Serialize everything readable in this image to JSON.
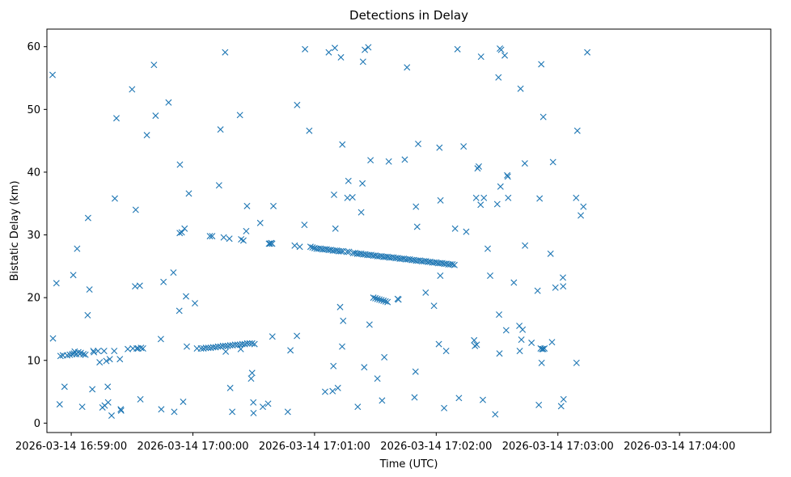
{
  "chart_data": {
    "type": "scatter",
    "title": "Detections in Delay",
    "xlabel": "Time (UTC)",
    "ylabel": "Bistatic Delay (km)",
    "marker": "x",
    "color": "#1f77b4",
    "xlim_seconds": [
      -12,
      345
    ],
    "ylim": [
      -1.5,
      62.8
    ],
    "x_ticks": [
      {
        "seconds": 0,
        "label": "2026-03-14 16:59:00"
      },
      {
        "seconds": 60,
        "label": "2026-03-14 17:00:00"
      },
      {
        "seconds": 120,
        "label": "2026-03-14 17:01:00"
      },
      {
        "seconds": 180,
        "label": "2026-03-14 17:02:00"
      },
      {
        "seconds": 240,
        "label": "2026-03-14 17:03:00"
      },
      {
        "seconds": 300,
        "label": "2026-03-14 17:04:00"
      }
    ],
    "y_ticks": [
      0,
      10,
      20,
      30,
      40,
      50,
      60
    ],
    "x_unit_note": "x values are seconds after 2026-03-14 16:59:00 UTC",
    "points": [
      [
        -9.0,
        13.5
      ],
      [
        -9.2,
        55.5
      ],
      [
        -7.3,
        22.3
      ],
      [
        -5.7,
        3.0
      ],
      [
        -5.3,
        10.7
      ],
      [
        -4.1,
        10.8
      ],
      [
        -3.3,
        5.8
      ],
      [
        -2.0,
        10.8
      ],
      [
        -0.7,
        10.9
      ],
      [
        0.5,
        11.0
      ],
      [
        1.0,
        23.6
      ],
      [
        1.3,
        11.1
      ],
      [
        1.7,
        11.4
      ],
      [
        2.5,
        11.0
      ],
      [
        2.9,
        27.8
      ],
      [
        3.5,
        11.3
      ],
      [
        4.2,
        11.0
      ],
      [
        4.7,
        11.2
      ],
      [
        5.4,
        2.6
      ],
      [
        6.0,
        11.0
      ],
      [
        7.0,
        10.9
      ],
      [
        8.1,
        17.2
      ],
      [
        8.3,
        32.7
      ],
      [
        9.0,
        21.3
      ],
      [
        10.4,
        5.4
      ],
      [
        10.9,
        11.5
      ],
      [
        13.2,
        11.5
      ],
      [
        14.0,
        9.7
      ],
      [
        15.4,
        2.5
      ],
      [
        16.2,
        11.5
      ],
      [
        16.5,
        2.8
      ],
      [
        17.3,
        9.9
      ],
      [
        18.0,
        5.8
      ],
      [
        18.2,
        3.3
      ],
      [
        19.0,
        10.2
      ],
      [
        19.9,
        1.2
      ],
      [
        21.2,
        11.5
      ],
      [
        21.5,
        35.8
      ],
      [
        22.3,
        48.6
      ],
      [
        24.0,
        10.2
      ],
      [
        24.4,
        2.2
      ],
      [
        24.6,
        2.0
      ],
      [
        27.9,
        11.8
      ],
      [
        30.0,
        53.2
      ],
      [
        30.4,
        11.9
      ],
      [
        31.5,
        21.8
      ],
      [
        31.8,
        34.0
      ],
      [
        32.3,
        11.9
      ],
      [
        33.0,
        11.9
      ],
      [
        33.8,
        21.9
      ],
      [
        34.1,
        3.8
      ],
      [
        34.4,
        12.0
      ],
      [
        35.4,
        11.9
      ],
      [
        37.3,
        45.9
      ],
      [
        40.8,
        57.1
      ],
      [
        41.6,
        49.0
      ],
      [
        44.4,
        2.2
      ],
      [
        44.2,
        13.4
      ],
      [
        45.5,
        22.5
      ],
      [
        48.0,
        51.1
      ],
      [
        50.4,
        24.0
      ],
      [
        50.8,
        1.8
      ],
      [
        53.3,
        17.9
      ],
      [
        53.5,
        30.3
      ],
      [
        53.6,
        41.2
      ],
      [
        54.5,
        30.4
      ],
      [
        55.2,
        3.4
      ],
      [
        55.9,
        31.0
      ],
      [
        56.6,
        20.2
      ],
      [
        57.0,
        12.2
      ],
      [
        58.0,
        36.6
      ],
      [
        61.0,
        19.1
      ],
      [
        62.0,
        11.9
      ],
      [
        64,
        11.9
      ],
      [
        65.2,
        11.9
      ],
      [
        66.4,
        12.0
      ],
      [
        67.6,
        12.0
      ],
      [
        68.8,
        12.0
      ],
      [
        70.0,
        12.1
      ],
      [
        71.2,
        12.1
      ],
      [
        72.4,
        12.2
      ],
      [
        73.6,
        12.2
      ],
      [
        74.8,
        12.3
      ],
      [
        76.0,
        12.3
      ],
      [
        77.2,
        12.3
      ],
      [
        78.4,
        12.4
      ],
      [
        79.6,
        12.4
      ],
      [
        80.8,
        12.5
      ],
      [
        82.0,
        12.5
      ],
      [
        83.2,
        12.5
      ],
      [
        84.4,
        12.6
      ],
      [
        85.6,
        12.6
      ],
      [
        86.8,
        12.7
      ],
      [
        88.0,
        12.7
      ],
      [
        89.2,
        12.7
      ],
      [
        90.4,
        12.6
      ],
      [
        68.4,
        29.8
      ],
      [
        69.5,
        29.8
      ],
      [
        72.9,
        37.9
      ],
      [
        73.6,
        46.8
      ],
      [
        75.2,
        29.6
      ],
      [
        75.9,
        59.1
      ],
      [
        76.2,
        11.4
      ],
      [
        78.0,
        29.4
      ],
      [
        78.4,
        5.6
      ],
      [
        79.4,
        1.8
      ],
      [
        83.2,
        49.1
      ],
      [
        83.6,
        11.8
      ],
      [
        83.8,
        29.3
      ],
      [
        84.9,
        29.1
      ],
      [
        86.3,
        30.6
      ],
      [
        86.7,
        34.6
      ],
      [
        88.7,
        7.1
      ],
      [
        89.2,
        8.0
      ],
      [
        89.8,
        3.3
      ],
      [
        89.9,
        1.6
      ],
      [
        93.2,
        31.9
      ],
      [
        94.5,
        2.6
      ],
      [
        97.1,
        3.1
      ],
      [
        97.5,
        28.6
      ],
      [
        98.0,
        28.6
      ],
      [
        98.6,
        28.7
      ],
      [
        99.1,
        28.6
      ],
      [
        99.2,
        13.8
      ],
      [
        99.7,
        34.6
      ],
      [
        106.8,
        1.8
      ],
      [
        108.1,
        11.6
      ],
      [
        110.2,
        28.3
      ],
      [
        111.3,
        13.9
      ],
      [
        111.4,
        50.7
      ],
      [
        112.7,
        28.1
      ],
      [
        115.0,
        31.6
      ],
      [
        115.3,
        59.6
      ],
      [
        117.4,
        46.6
      ],
      [
        118,
        28.1
      ],
      [
        119,
        28.0
      ],
      [
        120,
        27.9
      ],
      [
        121,
        27.8
      ],
      [
        122,
        27.8
      ],
      [
        123,
        27.8
      ],
      [
        124,
        27.7
      ],
      [
        125,
        27.7
      ],
      [
        126,
        27.7
      ],
      [
        127,
        27.6
      ],
      [
        128,
        27.6
      ],
      [
        129,
        27.5
      ],
      [
        130,
        27.5
      ],
      [
        131,
        27.5
      ],
      [
        132,
        27.4
      ],
      [
        133,
        27.4
      ],
      [
        134,
        27.4
      ],
      [
        136,
        27.3
      ],
      [
        137,
        27.3
      ],
      [
        125.2,
        5.0
      ],
      [
        127.0,
        59.1
      ],
      [
        128.9,
        5.1
      ],
      [
        129.3,
        9.1
      ],
      [
        129.6,
        36.4
      ],
      [
        130.0,
        59.8
      ],
      [
        130.3,
        31.0
      ],
      [
        131.5,
        5.6
      ],
      [
        132.6,
        18.5
      ],
      [
        133.0,
        58.3
      ],
      [
        133.6,
        12.2
      ],
      [
        133.7,
        44.4
      ],
      [
        134.1,
        16.3
      ],
      [
        136.2,
        35.9
      ],
      [
        136.7,
        38.6
      ],
      [
        138.7,
        36.0
      ],
      [
        139,
        27.1
      ],
      [
        140,
        27.1
      ],
      [
        141,
        27.0
      ],
      [
        142,
        27.0
      ],
      [
        143,
        27.0
      ],
      [
        144,
        26.9
      ],
      [
        145,
        26.9
      ],
      [
        146,
        26.8
      ],
      [
        147,
        26.8
      ],
      [
        148,
        26.8
      ],
      [
        149,
        26.7
      ],
      [
        150,
        26.7
      ],
      [
        151,
        26.6
      ],
      [
        152,
        26.6
      ],
      [
        153,
        26.6
      ],
      [
        154,
        26.5
      ],
      [
        155,
        26.5
      ],
      [
        156,
        26.5
      ],
      [
        157,
        26.4
      ],
      [
        158,
        26.4
      ],
      [
        159,
        26.4
      ],
      [
        160,
        26.3
      ],
      [
        161,
        26.3
      ],
      [
        162,
        26.2
      ],
      [
        163,
        26.2
      ],
      [
        164,
        26.2
      ],
      [
        165,
        26.1
      ],
      [
        166,
        26.1
      ],
      [
        167,
        26.1
      ],
      [
        168,
        26.0
      ],
      [
        169,
        26.0
      ],
      [
        170,
        25.9
      ],
      [
        171,
        25.9
      ],
      [
        172,
        25.9
      ],
      [
        173,
        25.8
      ],
      [
        174,
        25.8
      ],
      [
        175,
        25.8
      ],
      [
        176,
        25.7
      ],
      [
        177,
        25.7
      ],
      [
        178,
        25.6
      ],
      [
        179,
        25.6
      ],
      [
        180,
        25.6
      ],
      [
        181,
        25.5
      ],
      [
        182,
        25.5
      ],
      [
        183,
        25.5
      ],
      [
        184,
        25.4
      ],
      [
        185,
        25.4
      ],
      [
        186,
        25.3
      ],
      [
        187,
        25.3
      ],
      [
        188,
        25.3
      ],
      [
        189,
        25.2
      ],
      [
        141.3,
        2.6
      ],
      [
        143.0,
        33.6
      ],
      [
        143.6,
        38.2
      ],
      [
        143.9,
        57.6
      ],
      [
        144.5,
        8.9
      ],
      [
        144.8,
        59.5
      ],
      [
        146.5,
        59.9
      ],
      [
        147.1,
        15.7
      ],
      [
        147.6,
        41.9
      ],
      [
        149.0,
        20.0
      ],
      [
        150,
        19.9
      ],
      [
        151,
        19.8
      ],
      [
        152,
        19.7
      ],
      [
        153,
        19.6
      ],
      [
        154,
        19.5
      ],
      [
        155,
        19.4
      ],
      [
        156,
        19.3
      ],
      [
        151.0,
        7.1
      ],
      [
        153.3,
        3.6
      ],
      [
        154.4,
        10.5
      ],
      [
        156.6,
        41.7
      ],
      [
        161.4,
        19.7
      ],
      [
        161.0,
        19.8
      ],
      [
        164.5,
        42.0
      ],
      [
        165.6,
        56.7
      ],
      [
        169.3,
        4.1
      ],
      [
        169.8,
        8.2
      ],
      [
        170.0,
        34.5
      ],
      [
        170.6,
        31.3
      ],
      [
        171.1,
        44.5
      ],
      [
        174.8,
        20.8
      ],
      [
        178.9,
        18.7
      ],
      [
        181.3,
        12.6
      ],
      [
        181.6,
        43.9
      ],
      [
        182.1,
        35.5
      ],
      [
        182.0,
        23.5
      ],
      [
        183.9,
        2.4
      ],
      [
        184.9,
        11.5
      ],
      [
        189.3,
        31.0
      ],
      [
        190.5,
        59.6
      ],
      [
        191.2,
        4.0
      ],
      [
        193.5,
        44.1
      ],
      [
        194.8,
        30.5
      ],
      [
        198.7,
        13.2
      ],
      [
        199.1,
        12.3
      ],
      [
        200.0,
        12.5
      ],
      [
        199.7,
        35.9
      ],
      [
        201.0,
        40.9
      ],
      [
        200.4,
        40.6
      ],
      [
        201.9,
        34.8
      ],
      [
        202.1,
        58.4
      ],
      [
        203.0,
        3.7
      ],
      [
        203.5,
        35.9
      ],
      [
        205.4,
        27.8
      ],
      [
        206.6,
        23.5
      ],
      [
        209.1,
        1.4
      ],
      [
        210.1,
        34.9
      ],
      [
        211.2,
        11.1
      ],
      [
        211.0,
        17.3
      ],
      [
        210.7,
        55.1
      ],
      [
        211.4,
        59.7
      ],
      [
        212.0,
        59.5
      ],
      [
        211.7,
        37.7
      ],
      [
        213.8,
        58.6
      ],
      [
        214.5,
        14.8
      ],
      [
        215.0,
        39.5
      ],
      [
        215.3,
        39.3
      ],
      [
        215.5,
        35.9
      ],
      [
        218.3,
        22.4
      ],
      [
        221.2,
        11.5
      ],
      [
        221.0,
        15.5
      ],
      [
        221.6,
        53.3
      ],
      [
        222.0,
        13.3
      ],
      [
        222.6,
        14.9
      ],
      [
        223.7,
        41.4
      ],
      [
        223.8,
        28.3
      ],
      [
        227.0,
        12.8
      ],
      [
        230.0,
        21.1
      ],
      [
        230.6,
        2.9
      ],
      [
        231.0,
        35.8
      ],
      [
        231.8,
        57.2
      ],
      [
        232.0,
        9.6
      ],
      [
        231.5,
        11.9
      ],
      [
        232.2,
        11.8
      ],
      [
        232.8,
        11.8
      ],
      [
        233.4,
        11.9
      ],
      [
        232.8,
        48.8
      ],
      [
        236.4,
        27.0
      ],
      [
        237.6,
        41.6
      ],
      [
        238.8,
        21.6
      ],
      [
        241.6,
        2.7
      ],
      [
        242.5,
        23.2
      ],
      [
        242.8,
        3.8
      ],
      [
        242.6,
        21.8
      ],
      [
        249.0,
        35.9
      ],
      [
        249.6,
        46.6
      ],
      [
        251.3,
        33.1
      ],
      [
        252.6,
        34.5
      ],
      [
        254.5,
        59.1
      ],
      [
        249.2,
        9.6
      ],
      [
        11.2,
        11.3
      ],
      [
        237.1,
        12.9
      ]
    ]
  }
}
